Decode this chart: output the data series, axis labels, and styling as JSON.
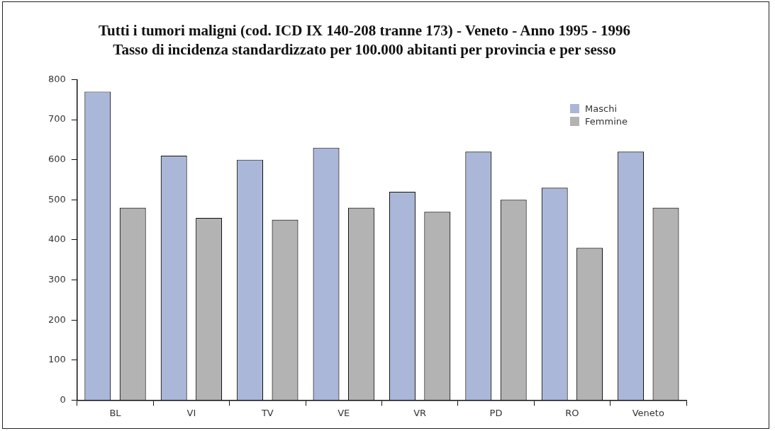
{
  "chart_data": {
    "type": "bar",
    "title": "Tutti i tumori maligni (cod. ICD IX 140-208 tranne 173) - Veneto - Anno 1995 - 1996",
    "subtitle": "Tasso di incidenza standardizzato per 100.000 abitanti per provincia e per sesso",
    "categories": [
      "BL",
      "VI",
      "TV",
      "VE",
      "VR",
      "PD",
      "RO",
      "Veneto"
    ],
    "series": [
      {
        "name": "Maschi",
        "color": "#aab7d9",
        "values": [
          770,
          610,
          600,
          630,
          520,
          620,
          530,
          620
        ]
      },
      {
        "name": "Femmine",
        "color": "#b3b3b3",
        "values": [
          480,
          455,
          450,
          480,
          470,
          500,
          380,
          480
        ]
      }
    ],
    "ylim": [
      0,
      800
    ],
    "yticks": [
      0,
      100,
      200,
      300,
      400,
      500,
      600,
      700,
      800
    ],
    "grid": false,
    "legend": "top right"
  }
}
